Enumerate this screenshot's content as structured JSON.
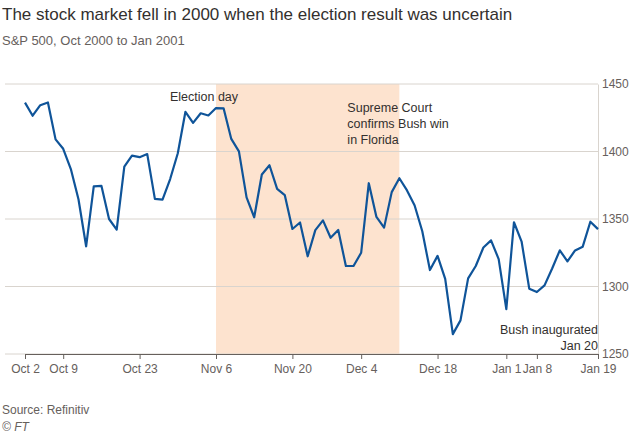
{
  "chart_data": {
    "type": "line",
    "title": "The stock market fell in 2000 when the election result was uncertain",
    "subtitle": "S&P 500, Oct 2000 to Jan 2001",
    "source": "Source: Refinitiv",
    "credit": "© FT",
    "color": "#0f5499",
    "categories": [
      "Oct 2",
      null,
      null,
      null,
      null,
      "Oct 9",
      null,
      null,
      null,
      null,
      null,
      null,
      null,
      null,
      null,
      "Oct 23",
      null,
      null,
      null,
      null,
      null,
      null,
      null,
      null,
      null,
      "Nov 6",
      null,
      null,
      null,
      null,
      null,
      null,
      null,
      null,
      null,
      "Nov 20",
      null,
      null,
      null,
      null,
      null,
      null,
      null,
      null,
      "Dec 4",
      null,
      null,
      null,
      null,
      null,
      null,
      null,
      null,
      null,
      "Dec 18",
      null,
      null,
      null,
      null,
      null,
      null,
      null,
      null,
      "Jan 1",
      null,
      null,
      null,
      "Jan 8",
      null,
      null,
      null,
      null,
      null,
      null,
      null,
      "Jan 19"
    ],
    "values": [
      1436.2,
      1426.5,
      1434.3,
      1436.3,
      1409.0,
      1402.0,
      1387.0,
      1364.6,
      1329.8,
      1374.2,
      1374.6,
      1350.0,
      1342.1,
      1388.8,
      1396.9,
      1395.8,
      1398.1,
      1364.9,
      1364.4,
      1379.6,
      1398.7,
      1429.4,
      1421.2,
      1428.3,
      1426.7,
      1432.2,
      1431.9,
      1409.3,
      1400.1,
      1366.0,
      1351.3,
      1383.0,
      1389.8,
      1372.3,
      1367.7,
      1342.6,
      1347.4,
      1322.4,
      1341.8,
      1349.0,
      1336.1,
      1341.9,
      1315.2,
      1315.2,
      1325.0,
      1376.5,
      1351.5,
      1343.6,
      1369.9,
      1380.2,
      1371.2,
      1360.0,
      1340.9,
      1312.2,
      1322.7,
      1305.6,
      1264.7,
      1274.9,
      1306.0,
      1315.2,
      1328.9,
      1334.2,
      1320.3,
      1283.3,
      1347.6,
      1333.3,
      1298.4,
      1295.9,
      1300.8,
      1313.3,
      1326.8,
      1318.6,
      1326.7,
      1329.5,
      1348.0,
      1342.5
    ],
    "highlight": [
      25,
      49
    ],
    "annotations": [
      {
        "lines": [
          "Election day"
        ]
      },
      {
        "lines": [
          "Supreme Court",
          "confirms Bush win",
          "in Florida"
        ]
      },
      {
        "lines": [
          "Bush inaugurated",
          "Jan 20"
        ]
      }
    ],
    "ylim": [
      1250,
      1450
    ],
    "yticks": [
      1250,
      1300,
      1350,
      1400,
      1450
    ],
    "grid": true
  }
}
